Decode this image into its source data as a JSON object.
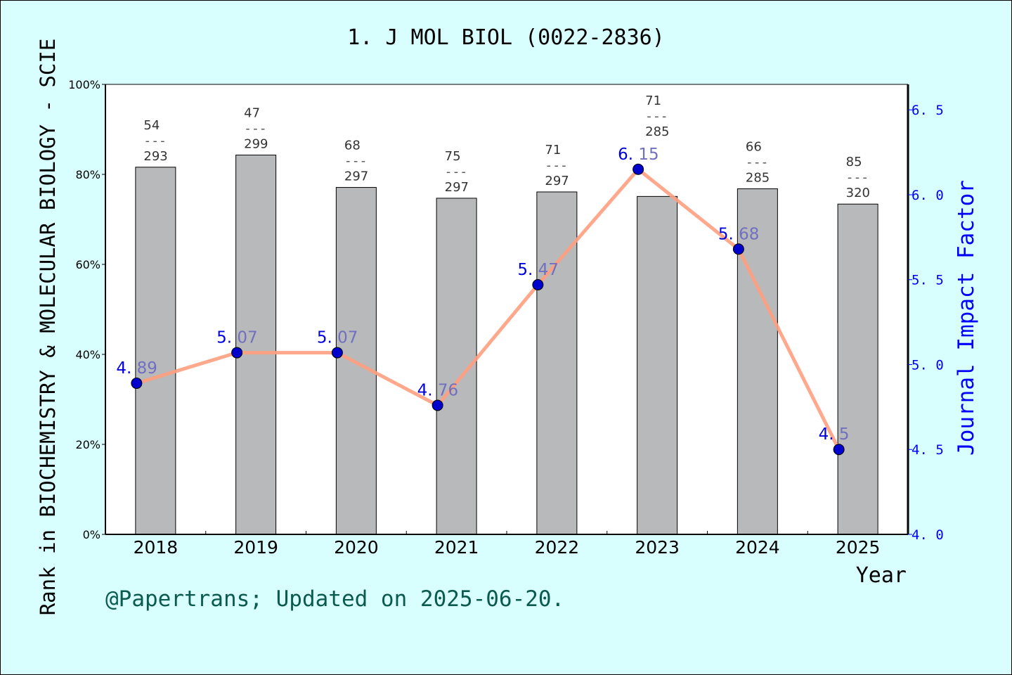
{
  "chart_data": {
    "type": "bar+line",
    "title": "1. J MOL BIOL (0022-2836)",
    "xlabel": "Year",
    "ylabel_left": "Rank in BIOCHEMISTRY & MOLECULAR BIOLOGY - SCIE",
    "ylabel_right": "Journal Impact Factor",
    "categories": [
      "2018",
      "2019",
      "2020",
      "2021",
      "2022",
      "2023",
      "2024",
      "2025"
    ],
    "rank": [
      54,
      47,
      68,
      75,
      71,
      71,
      66,
      85
    ],
    "total": [
      293,
      299,
      297,
      297,
      297,
      285,
      285,
      320
    ],
    "rank_separator": "---",
    "bar_percentile": [
      81.6,
      84.3,
      77.1,
      74.7,
      76.1,
      75.1,
      76.8,
      73.4
    ],
    "impact_factor": [
      4.89,
      5.07,
      5.07,
      4.76,
      5.47,
      6.15,
      5.68,
      4.5
    ],
    "left_ylim": [
      0,
      100
    ],
    "left_ticks": [
      "0%",
      "20%",
      "40%",
      "60%",
      "80%",
      "100%"
    ],
    "right_ylim": [
      4.0,
      6.65
    ],
    "right_ticks": [
      "4.0",
      "4.5",
      "5.0",
      "5.5",
      "6.0",
      "6.5"
    ],
    "colors": {
      "bar": "#b8b9ba",
      "line": "#ff9f7f",
      "marker": "#0000cc",
      "right_axis": "#0000ff",
      "footer": "#0b5a50",
      "background": "#d8fefe"
    }
  },
  "footer": "@Papertrans; Updated on 2025-06-20."
}
